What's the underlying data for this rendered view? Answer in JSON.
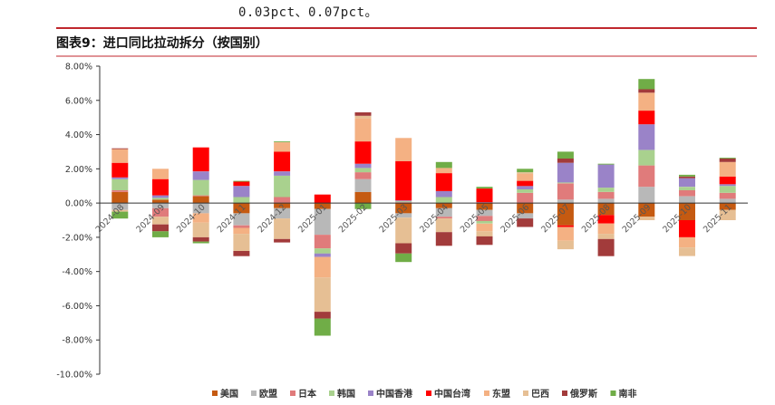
{
  "header_text": "0.03pct、0.07pct。",
  "figure_title": "图表9：进口同比拉动拆分（按国别）",
  "colors": {
    "accent_rule": "#c0272d",
    "美国": "#c55a11",
    "欧盟": "#b8b8b8",
    "日本": "#e07b7b",
    "韩国": "#a9d18e",
    "中国香港": "#9a83c8",
    "中国台湾": "#ff0000",
    "东盟": "#f4b183",
    "巴西": "#e6bf94",
    "俄罗斯": "#a23b3b",
    "南非": "#70ad47"
  },
  "chart_data": {
    "type": "bar",
    "stacked": true,
    "title": "",
    "xlabel": "",
    "ylabel": "",
    "ylim": [
      -10,
      8
    ],
    "ytick_step": 2,
    "ytick_format": "percent_2dp",
    "grid": false,
    "legend_position": "bottom",
    "categories": [
      "2024-08",
      "2024-09",
      "2024-10",
      "2024-11",
      "2024-12",
      "2025-01",
      "2025-02",
      "2025-03",
      "2025-04",
      "2025-05",
      "2025-06",
      "2025-07",
      "2025-08",
      "2025-09",
      "2025-10",
      "2025-11"
    ],
    "series": [
      {
        "name": "美国",
        "values": [
          0.65,
          0.2,
          0.4,
          -0.6,
          -0.3,
          -0.35,
          0.65,
          -0.6,
          -0.3,
          -0.4,
          -0.6,
          -1.3,
          -0.7,
          -0.8,
          -1.0,
          -0.4
        ]
      },
      {
        "name": "欧盟",
        "values": [
          -0.4,
          -0.3,
          -0.6,
          -0.7,
          -0.6,
          -1.5,
          0.75,
          -0.25,
          -0.5,
          -0.35,
          -0.3,
          0.2,
          0.25,
          0.95,
          0.4,
          0.25
        ]
      },
      {
        "name": "日本",
        "values": [
          0.1,
          -0.5,
          0.05,
          -0.15,
          0.35,
          -0.8,
          0.4,
          0.05,
          -0.1,
          -0.3,
          0.6,
          0.95,
          0.4,
          1.25,
          0.35,
          0.35
        ]
      },
      {
        "name": "韩国",
        "values": [
          0.65,
          0.1,
          0.9,
          0.35,
          1.25,
          -0.3,
          0.25,
          0.05,
          0.35,
          -0.15,
          0.2,
          0.05,
          0.25,
          0.9,
          0.2,
          0.4
        ]
      },
      {
        "name": "中国香港",
        "values": [
          0.1,
          0.15,
          0.5,
          0.65,
          0.25,
          -0.2,
          0.25,
          0.05,
          0.35,
          0.05,
          0.2,
          1.15,
          1.35,
          1.5,
          0.5,
          0.1
        ]
      },
      {
        "name": "中国台湾",
        "values": [
          0.85,
          0.95,
          1.4,
          0.25,
          1.15,
          0.5,
          1.3,
          2.3,
          1.05,
          0.8,
          0.3,
          -0.1,
          -0.5,
          0.8,
          -1.0,
          0.45
        ]
      },
      {
        "name": "东盟",
        "values": [
          0.8,
          0.6,
          -0.55,
          -0.35,
          0.55,
          -1.2,
          1.35,
          1.35,
          0.3,
          -0.45,
          0.4,
          -0.8,
          -0.6,
          1.05,
          -0.6,
          0.85
        ]
      },
      {
        "name": "巴西",
        "values": [
          -0.1,
          -0.45,
          -0.85,
          -1.0,
          -1.2,
          -2.0,
          0.15,
          -1.5,
          -0.8,
          -0.3,
          0.1,
          -0.5,
          -0.3,
          -0.2,
          -0.5,
          -0.6
        ]
      },
      {
        "name": "俄罗斯",
        "values": [
          0.05,
          -0.4,
          -0.25,
          -0.3,
          -0.2,
          -0.4,
          0.2,
          -0.6,
          -0.8,
          -0.5,
          -0.5,
          0.25,
          -1.0,
          0.2,
          0.1,
          0.2
        ]
      },
      {
        "name": "南非",
        "values": [
          -0.4,
          -0.35,
          -0.1,
          0.05,
          0.05,
          -1.0,
          -0.35,
          -0.5,
          0.35,
          0.1,
          0.2,
          0.4,
          0.05,
          0.6,
          0.1,
          0.05
        ]
      }
    ]
  }
}
